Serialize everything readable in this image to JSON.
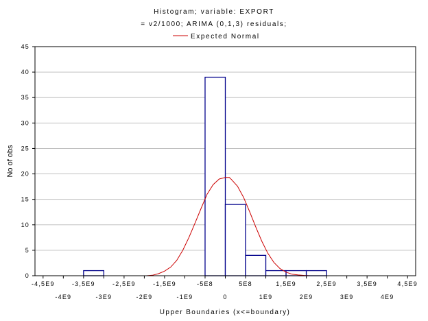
{
  "chart_data": {
    "type": "bar",
    "title_lines": [
      "Histogram; variable: EXPORT",
      "= v2/1000; ARIMA (0,1,3) residuals;"
    ],
    "legend": "Expected Normal",
    "xlabel": "Upper Boundaries (x<=boundary)",
    "ylabel": "No of obs",
    "xlim": [
      -4700000000,
      4700000000
    ],
    "ylim": [
      0,
      45
    ],
    "grid": true,
    "legend_placement": "top-center",
    "colors": {
      "bars": "#00008b",
      "curve": "#cc0000",
      "grid": "#c0c0c0"
    },
    "yticks": [
      0,
      5,
      10,
      15,
      20,
      25,
      30,
      35,
      40,
      45
    ],
    "ytick_labels": [
      "0",
      "5",
      "10",
      "15",
      "20",
      "25",
      "30",
      "35",
      "40",
      "45"
    ],
    "xticks_upper": [
      {
        "x": -4500000000,
        "label": "-4,5E9"
      },
      {
        "x": -3500000000,
        "label": "-3,5E9"
      },
      {
        "x": -2500000000,
        "label": "-2,5E9"
      },
      {
        "x": -1500000000,
        "label": "-1,5E9"
      },
      {
        "x": -500000000,
        "label": "-5E8"
      },
      {
        "x": 500000000,
        "label": "5E8"
      },
      {
        "x": 1500000000,
        "label": "1,5E9"
      },
      {
        "x": 2500000000,
        "label": "2,5E9"
      },
      {
        "x": 3500000000,
        "label": "3,5E9"
      },
      {
        "x": 4500000000,
        "label": "4,5E9"
      }
    ],
    "xticks_lower": [
      {
        "x": -4000000000,
        "label": "-4E9"
      },
      {
        "x": -3000000000,
        "label": "-3E9"
      },
      {
        "x": -2000000000,
        "label": "-2E9"
      },
      {
        "x": -1000000000,
        "label": "-1E9"
      },
      {
        "x": 0,
        "label": "0"
      },
      {
        "x": 1000000000,
        "label": "1E9"
      },
      {
        "x": 2000000000,
        "label": "2E9"
      },
      {
        "x": 3000000000,
        "label": "3E9"
      },
      {
        "x": 4000000000,
        "label": "4E9"
      }
    ],
    "bars": [
      {
        "from": -3500000000,
        "to": -3000000000,
        "count": 1
      },
      {
        "from": -500000000,
        "to": 0,
        "count": 39
      },
      {
        "from": 0,
        "to": 500000000,
        "count": 14
      },
      {
        "from": 500000000,
        "to": 1000000000,
        "count": 4
      },
      {
        "from": 1000000000,
        "to": 1500000000,
        "count": 1
      },
      {
        "from": 1500000000,
        "to": 2000000000,
        "count": 1
      },
      {
        "from": 2000000000,
        "to": 2500000000,
        "count": 1
      }
    ],
    "expected_normal": {
      "x": [
        -1950000000,
        -1800000000,
        -1650000000,
        -1500000000,
        -1350000000,
        -1200000000,
        -1050000000,
        -900000000,
        -750000000,
        -600000000,
        -450000000,
        -300000000,
        -150000000,
        0,
        100000000,
        150000000,
        300000000,
        450000000,
        600000000,
        750000000,
        900000000,
        1050000000,
        1200000000,
        1350000000,
        1500000000,
        1650000000,
        1800000000,
        1950000000,
        2100000000,
        2200000000
      ],
      "y": [
        0.0,
        0.1,
        0.4,
        0.9,
        1.7,
        3.0,
        5.0,
        7.5,
        10.3,
        13.2,
        16.0,
        17.9,
        19.0,
        19.3,
        19.3,
        18.9,
        17.6,
        15.4,
        12.6,
        9.6,
        6.8,
        4.4,
        2.6,
        1.4,
        0.7,
        0.3,
        0.15,
        0.05,
        0.0,
        0.0
      ]
    }
  }
}
